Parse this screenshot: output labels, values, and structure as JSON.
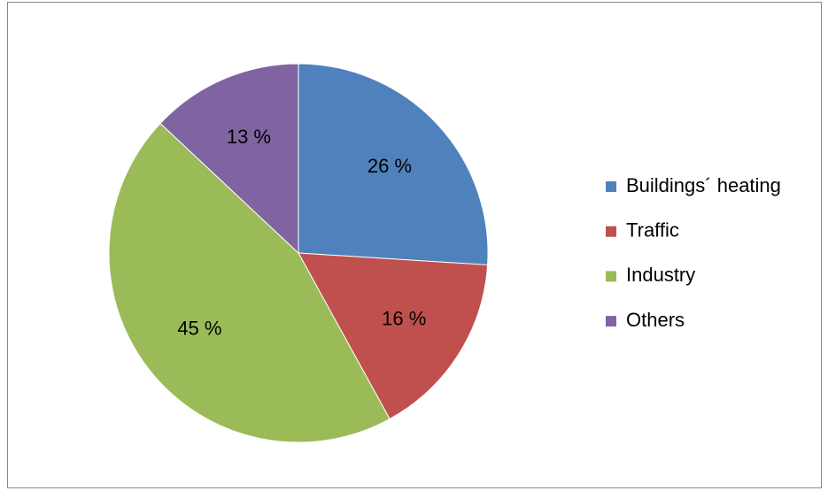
{
  "chart_data": {
    "type": "pie",
    "categories": [
      "Buildings´ heating",
      "Traffic",
      "Industry",
      "Others"
    ],
    "values": [
      26,
      16,
      45,
      13
    ],
    "value_labels": [
      "26 %",
      "16 %",
      "45 %",
      "13 %"
    ],
    "colors": [
      "#4f81bd",
      "#c0504d",
      "#9bbb59",
      "#8064a2"
    ],
    "legend": "right"
  }
}
